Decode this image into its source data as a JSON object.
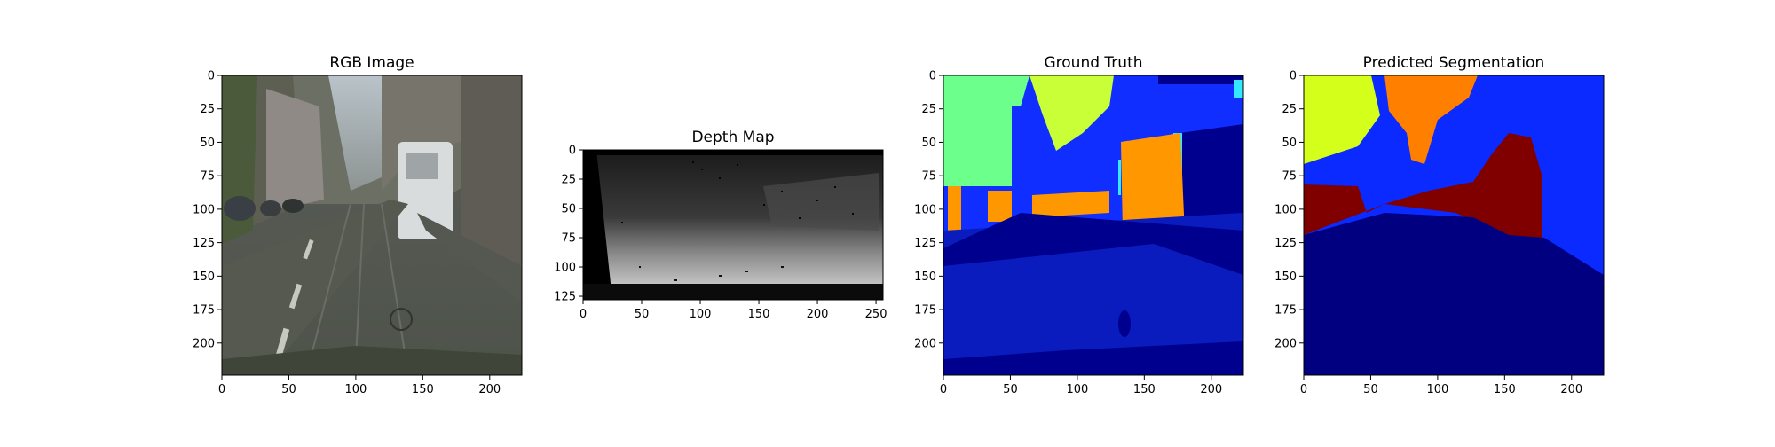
{
  "panels": [
    {
      "id": "rgb",
      "title": "RGB Image",
      "xlim": [
        0,
        224
      ],
      "ylim": [
        0,
        224
      ],
      "xticks": [
        0,
        50,
        100,
        150,
        200
      ],
      "yticks": [
        0,
        25,
        50,
        75,
        100,
        125,
        150,
        175,
        200
      ]
    },
    {
      "id": "depth",
      "title": "Depth Map",
      "xlim": [
        0,
        256
      ],
      "ylim": [
        0,
        128
      ],
      "xticks": [
        0,
        50,
        100,
        150,
        200,
        250
      ],
      "yticks": [
        0,
        25,
        50,
        75,
        100,
        125
      ]
    },
    {
      "id": "gt",
      "title": "Ground Truth",
      "xlim": [
        0,
        224
      ],
      "ylim": [
        0,
        224
      ],
      "xticks": [
        0,
        50,
        100,
        150,
        200
      ],
      "yticks": [
        0,
        25,
        50,
        75,
        100,
        125,
        150,
        175,
        200
      ]
    },
    {
      "id": "pred",
      "title": "Predicted Segmentation",
      "xlim": [
        0,
        224
      ],
      "ylim": [
        0,
        224
      ],
      "xticks": [
        0,
        50,
        100,
        150,
        200
      ],
      "yticks": [
        0,
        25,
        50,
        75,
        100,
        125,
        150,
        175,
        200
      ]
    }
  ],
  "colors": {
    "sky_green": "#6cff8c",
    "vegetation_yellow": "#c8ff36",
    "pole_cyan": "#34e8ff",
    "building_blue": "#0f2eff",
    "road_navy": "#0a1cbe",
    "sidewalk_dark": "#00008f",
    "vehicle_orange": "#ff9800",
    "pred_yellow": "#d4ff1a",
    "pred_orange": "#ff7f00",
    "pred_red": "#800000",
    "pred_blue": "#0a2aff",
    "pred_navy": "#000080"
  }
}
